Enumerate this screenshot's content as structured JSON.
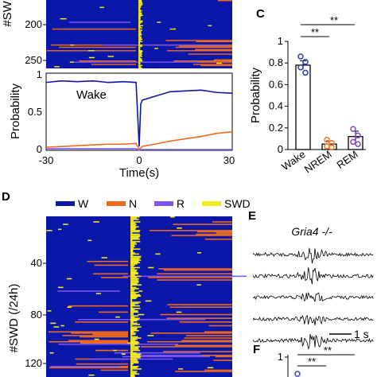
{
  "panels": {
    "top_raster": {
      "ylabel": "#SWD",
      "yticks": [
        "200",
        "250"
      ]
    },
    "B": {
      "letter": "",
      "xlabel": "Time(s)",
      "ylabel": "Probability",
      "xticks": [
        "-30",
        "0",
        "30"
      ],
      "yticks": [
        "0",
        "0.5",
        "1"
      ],
      "annotation": "Wake"
    },
    "C": {
      "letter": "C",
      "significance": [
        "**",
        "**"
      ]
    },
    "D": {
      "letter": "D",
      "ylabel": "#SWD (/24h)",
      "yticks": [
        "40",
        "80",
        "120"
      ],
      "legend": [
        "W",
        "N",
        "R",
        "SWD"
      ]
    },
    "E": {
      "letter": "E",
      "title": "Gria4 -/-",
      "scalebar": "1 s"
    },
    "F": {
      "letter": "F",
      "ytick": "1",
      "significance": [
        "**",
        "**"
      ]
    }
  },
  "colors": {
    "wake": "#0b17a8",
    "nrem": "#f26a1b",
    "rem": "#7b57f0",
    "swd": "#f4ec1c",
    "black": "#000000"
  },
  "chart_data": [
    {
      "type": "heatmap",
      "panel": "top-raster",
      "ylabel": "#SWD",
      "ylim": [
        175,
        260
      ],
      "states": [
        "W",
        "N",
        "R",
        "SWD"
      ],
      "description_values": "Per-event sleep/wake state raster around SWD onset (t = 0), events 175-260"
    },
    {
      "type": "line",
      "panel": "B",
      "xlabel": "Time(s)",
      "ylabel": "Probability",
      "xlim": [
        -30,
        30
      ],
      "ylim": [
        0,
        1
      ],
      "x": [
        -30,
        -25,
        -20,
        -15,
        -10,
        -5,
        -1,
        0,
        0.5,
        1,
        5,
        10,
        15,
        20,
        25,
        30
      ],
      "series": [
        {
          "name": "Wake",
          "color": "#0b17a8",
          "values": [
            0.88,
            0.9,
            0.89,
            0.9,
            0.88,
            0.89,
            0.88,
            0.05,
            0.6,
            0.65,
            0.7,
            0.76,
            0.77,
            0.78,
            0.75,
            0.74
          ]
        },
        {
          "values": [
            0.04,
            0.05,
            0.06,
            0.07,
            0.08,
            0.08,
            0.09,
            0.01,
            0.03,
            0.05,
            0.08,
            0.12,
            0.15,
            0.18,
            0.22,
            0.24
          ]
        },
        {
          "values": [
            0.02,
            0.02,
            0.02,
            0.02,
            0.02,
            0.02,
            0.02,
            0.0,
            0.01,
            0.01,
            0.01,
            0.01,
            0.01,
            0.01,
            0.01,
            0.01
          ]
        }
      ]
    },
    {
      "type": "bar",
      "panel": "C",
      "ylabel": "Probability",
      "categories": [
        "Wake",
        "NREM",
        "REM"
      ],
      "values": [
        0.78,
        0.05,
        0.12
      ],
      "errors": [
        0.04,
        0.03,
        0.05
      ],
      "ylim": [
        0,
        1
      ],
      "yticks": [
        0,
        0.2,
        0.4,
        0.6,
        0.8,
        1
      ],
      "points": [
        [
          0.86,
          0.81,
          0.76,
          0.71
        ],
        [
          0.09,
          0.06,
          0.03,
          0.02
        ],
        [
          0.19,
          0.13,
          0.07,
          0.05
        ]
      ],
      "point_colors": [
        "#3a40c0",
        "#f07a30",
        "#8a4cc8"
      ]
    },
    {
      "type": "heatmap",
      "panel": "D",
      "ylabel": "#SWD (/24h)",
      "ylim": [
        0,
        130
      ],
      "states": [
        "W",
        "N",
        "R",
        "SWD"
      ],
      "description_values": "Per-event sleep/wake state raster in Gria4 -/- mice around SWD onset"
    },
    {
      "type": "bar",
      "panel": "F",
      "ylim": [
        0,
        1
      ],
      "yticks": [
        1
      ]
    }
  ]
}
